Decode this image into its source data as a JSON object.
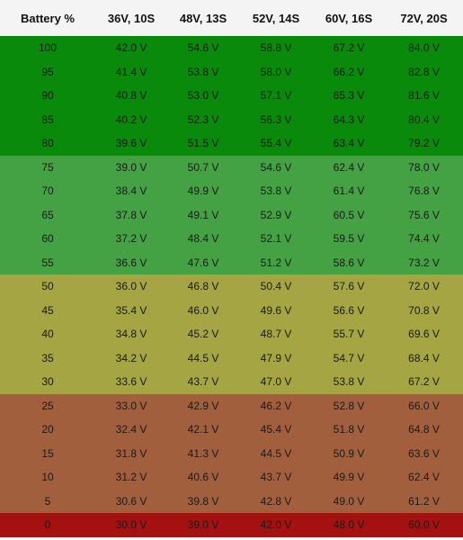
{
  "headers": [
    "Battery %",
    "36V, 10S",
    "48V, 13S",
    "52V, 14S",
    "60V, 16S",
    "72V, 20S"
  ],
  "colors": {
    "header_bg": "#f4f4f4",
    "band_100_80": "#0a8a0a",
    "band_75_55": "#44a244",
    "band_50_30": "#a5a543",
    "band_25_5": "#a15f3e",
    "band_0": "#a51111"
  },
  "rows": [
    {
      "band": "band_100_80",
      "cells": [
        "100",
        "42.0 V",
        "54.6 V",
        "58.8 V",
        "67.2 V",
        "84.0 V"
      ]
    },
    {
      "band": "band_100_80",
      "cells": [
        "95",
        "41.4 V",
        "53.8 V",
        "58.0 V",
        "66.2 V",
        "82.8 V"
      ]
    },
    {
      "band": "band_100_80",
      "cells": [
        "90",
        "40.8 V",
        "53.0 V",
        "57.1 V",
        "65.3 V",
        "81.6 V"
      ]
    },
    {
      "band": "band_100_80",
      "cells": [
        "85",
        "40.2 V",
        "52.3 V",
        "56.3 V",
        "64.3 V",
        "80.4 V"
      ]
    },
    {
      "band": "band_100_80",
      "cells": [
        "80",
        "39.6 V",
        "51.5 V",
        "55.4 V",
        "63.4 V",
        "79.2 V"
      ]
    },
    {
      "band": "band_75_55",
      "cells": [
        "75",
        "39.0 V",
        "50.7 V",
        "54.6 V",
        "62.4 V",
        "78.0 V"
      ]
    },
    {
      "band": "band_75_55",
      "cells": [
        "70",
        "38.4 V",
        "49.9 V",
        "53.8 V",
        "61.4 V",
        "76.8 V"
      ]
    },
    {
      "band": "band_75_55",
      "cells": [
        "65",
        "37.8 V",
        "49.1 V",
        "52.9 V",
        "60.5 V",
        "75.6 V"
      ]
    },
    {
      "band": "band_75_55",
      "cells": [
        "60",
        "37.2 V",
        "48.4 V",
        "52.1 V",
        "59.5 V",
        "74.4 V"
      ]
    },
    {
      "band": "band_75_55",
      "cells": [
        "55",
        "36.6 V",
        "47.6 V",
        "51.2 V",
        "58.6 V",
        "73.2 V"
      ]
    },
    {
      "band": "band_50_30",
      "cells": [
        "50",
        "36.0 V",
        "46.8 V",
        "50.4 V",
        "57.6 V",
        "72.0 V"
      ]
    },
    {
      "band": "band_50_30",
      "cells": [
        "45",
        "35.4 V",
        "46.0 V",
        "49.6 V",
        "56.6 V",
        "70.8 V"
      ]
    },
    {
      "band": "band_50_30",
      "cells": [
        "40",
        "34.8 V",
        "45.2 V",
        "48.7 V",
        "55.7 V",
        "69.6 V"
      ]
    },
    {
      "band": "band_50_30",
      "cells": [
        "35",
        "34.2 V",
        "44.5 V",
        "47.9 V",
        "54.7 V",
        "68.4 V"
      ]
    },
    {
      "band": "band_50_30",
      "cells": [
        "30",
        "33.6 V",
        "43.7 V",
        "47.0 V",
        "53.8 V",
        "67.2 V"
      ]
    },
    {
      "band": "band_25_5",
      "cells": [
        "25",
        "33.0 V",
        "42.9 V",
        "46.2 V",
        "52.8 V",
        "66.0 V"
      ]
    },
    {
      "band": "band_25_5",
      "cells": [
        "20",
        "32.4 V",
        "42.1 V",
        "45.4 V",
        "51.8 V",
        "64.8 V"
      ]
    },
    {
      "band": "band_25_5",
      "cells": [
        "15",
        "31.8 V",
        "41.3 V",
        "44.5 V",
        "50.9 V",
        "63.6 V"
      ]
    },
    {
      "band": "band_25_5",
      "cells": [
        "10",
        "31.2 V",
        "40.6 V",
        "43.7 V",
        "49.9 V",
        "62.4 V"
      ]
    },
    {
      "band": "band_25_5",
      "cells": [
        "5",
        "30.6 V",
        "39.8 V",
        "42.8 V",
        "49.0 V",
        "61.2 V"
      ]
    },
    {
      "band": "band_0",
      "cells": [
        "0",
        "30.0 V",
        "39.0 V",
        "42.0 V",
        "48.0 V",
        "60.0 V"
      ]
    }
  ]
}
